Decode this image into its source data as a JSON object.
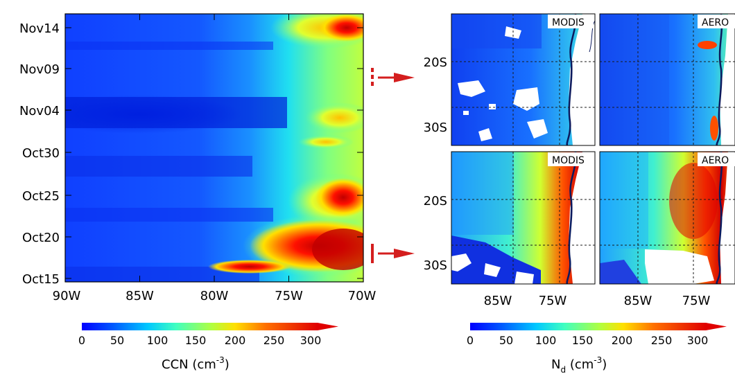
{
  "chart_data": [
    {
      "type": "heatmap",
      "x_ticks": [
        "90W",
        "85W",
        "80W",
        "75W",
        "70W"
      ],
      "y_ticks": [
        "Oct15",
        "Oct20",
        "Oct25",
        "Oct30",
        "Nov04",
        "Nov09",
        "Nov14"
      ],
      "xlim": [
        -90,
        -70
      ],
      "colorbar": {
        "ticks": [
          "0",
          "50",
          "100",
          "150",
          "200",
          "250",
          "300"
        ],
        "range": [
          0,
          300
        ],
        "label": "CCN (cm",
        "label_sup": "-3",
        "label_close": ")"
      },
      "colormap": "jet",
      "annotations": [
        {
          "style": "dashed",
          "target": "top panels",
          "date_approx": "Nov08"
        },
        {
          "style": "solid",
          "target": "bottom panels",
          "date_approx": "Oct18"
        }
      ]
    },
    {
      "type": "heatmap",
      "panels": [
        {
          "tag": "MODIS",
          "row": 1
        },
        {
          "tag": "AERO",
          "row": 1
        },
        {
          "tag": "MODIS",
          "row": 2
        },
        {
          "tag": "AERO",
          "row": 2
        }
      ],
      "x_ticks": [
        "85W",
        "75W"
      ],
      "y_ticks": [
        "20S",
        "30S"
      ],
      "colorbar": {
        "ticks": [
          "0",
          "50",
          "100",
          "150",
          "200",
          "250",
          "300"
        ],
        "range": [
          0,
          300
        ],
        "label": "N",
        "label_sub": "d",
        "label_unit": " (cm",
        "label_sup": "-3",
        "label_close": ")"
      },
      "colormap": "jet"
    }
  ],
  "colors": {
    "arrow": "#d41e1e",
    "coast": "#0b1a5e",
    "jet": [
      "#00008f",
      "#0000ff",
      "#006fff",
      "#00dfff",
      "#4fffaf",
      "#bfff3f",
      "#ffdf00",
      "#ff6f00",
      "#ff0000",
      "#8f0000"
    ]
  }
}
